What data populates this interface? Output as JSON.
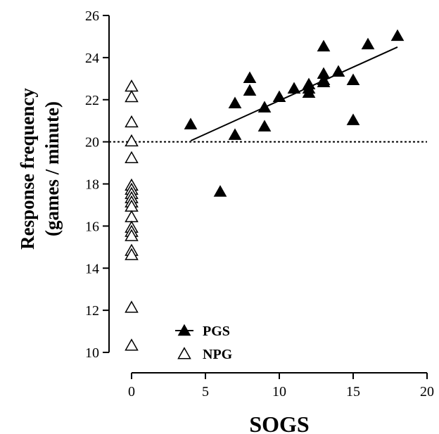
{
  "chart_data": {
    "type": "scatter",
    "xlabel": "SOGS",
    "ylabel_line1": "Response frequency",
    "ylabel_line2": "(games / minute)",
    "xlim": [
      0,
      20
    ],
    "ylim": [
      10,
      26
    ],
    "x_ticks": [
      0,
      5,
      10,
      15,
      20
    ],
    "y_ticks": [
      10,
      12,
      14,
      16,
      18,
      20,
      22,
      24,
      26
    ],
    "reference_line": {
      "y": 20,
      "style": "dotted"
    },
    "series": [
      {
        "name": "PGS",
        "marker": "filled-triangle",
        "points": [
          [
            4,
            20.8
          ],
          [
            6,
            17.6
          ],
          [
            7,
            21.8
          ],
          [
            7,
            20.3
          ],
          [
            8,
            23.0
          ],
          [
            8,
            22.4
          ],
          [
            9,
            21.6
          ],
          [
            9,
            20.7
          ],
          [
            10,
            22.1
          ],
          [
            11,
            22.5
          ],
          [
            12,
            22.7
          ],
          [
            12,
            22.5
          ],
          [
            12,
            22.3
          ],
          [
            13,
            24.5
          ],
          [
            13,
            23.2
          ],
          [
            13,
            22.9
          ],
          [
            13,
            22.8
          ],
          [
            14,
            23.3
          ],
          [
            15,
            22.9
          ],
          [
            15,
            21.0
          ],
          [
            16,
            24.6
          ],
          [
            18,
            25.0
          ]
        ],
        "fit_line": {
          "x": [
            4,
            18
          ],
          "y": [
            20.05,
            24.5
          ]
        }
      },
      {
        "name": "NPG",
        "marker": "open-triangle",
        "points": [
          [
            0,
            22.6
          ],
          [
            0,
            22.1
          ],
          [
            0,
            20.9
          ],
          [
            0,
            20.0
          ],
          [
            0,
            19.2
          ],
          [
            0,
            17.9
          ],
          [
            0,
            17.7
          ],
          [
            0,
            17.5
          ],
          [
            0,
            17.3
          ],
          [
            0,
            17.1
          ],
          [
            0,
            16.9
          ],
          [
            0,
            16.4
          ],
          [
            0,
            15.9
          ],
          [
            0,
            15.7
          ],
          [
            0,
            15.5
          ],
          [
            0,
            14.8
          ],
          [
            0,
            14.6
          ],
          [
            0,
            12.1
          ],
          [
            0,
            10.3
          ]
        ]
      }
    ],
    "legend_position": "bottom-left"
  }
}
